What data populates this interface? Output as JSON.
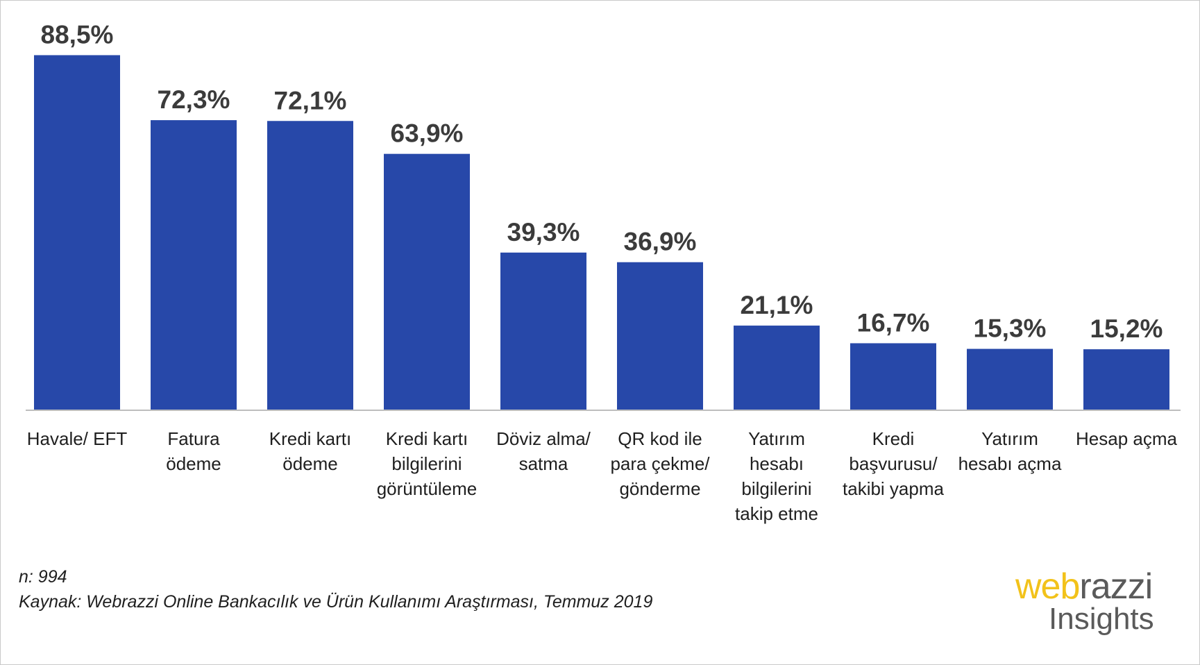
{
  "chart_data": {
    "type": "bar",
    "title": "",
    "xlabel": "",
    "ylabel": "",
    "ylim": [
      0,
      100
    ],
    "grid": false,
    "legend": "none",
    "bar_color": "#2748a9",
    "categories": [
      [
        "Havale/ EFT"
      ],
      [
        "Fatura",
        "ödeme"
      ],
      [
        "Kredi kartı",
        "ödeme"
      ],
      [
        "Kredi kartı",
        "bilgilerini",
        "görüntüleme"
      ],
      [
        "Döviz alma/",
        "satma"
      ],
      [
        "QR kod ile",
        "para çekme/",
        "gönderme"
      ],
      [
        "Yatırım",
        "hesabı",
        "bilgilerini",
        "takip etme"
      ],
      [
        "Kredi",
        "başvurusu/",
        "takibi yapma"
      ],
      [
        "Yatırım",
        "hesabı açma"
      ],
      [
        "Hesap açma"
      ]
    ],
    "values": [
      88.5,
      72.3,
      72.1,
      63.9,
      39.3,
      36.9,
      21.1,
      16.7,
      15.3,
      15.2
    ],
    "data_labels": [
      "88,5%",
      "72,3%",
      "72,1%",
      "63,9%",
      "39,3%",
      "36,9%",
      "21,1%",
      "16,7%",
      "15,3%",
      "15,2%"
    ]
  },
  "notes": {
    "sample": "n: 994",
    "source": "Kaynak: Webrazzi Online Bankacılık ve Ürün Kullanımı Araştırması, Temmuz 2019"
  },
  "logo": {
    "part1": "web",
    "part2": "razzi",
    "line2": "Insights"
  },
  "colors": {
    "bar": "#2748a9",
    "value_text": "#3b3b3b",
    "logo_yellow": "#f2c21a",
    "logo_gray": "#5a5a5a"
  }
}
